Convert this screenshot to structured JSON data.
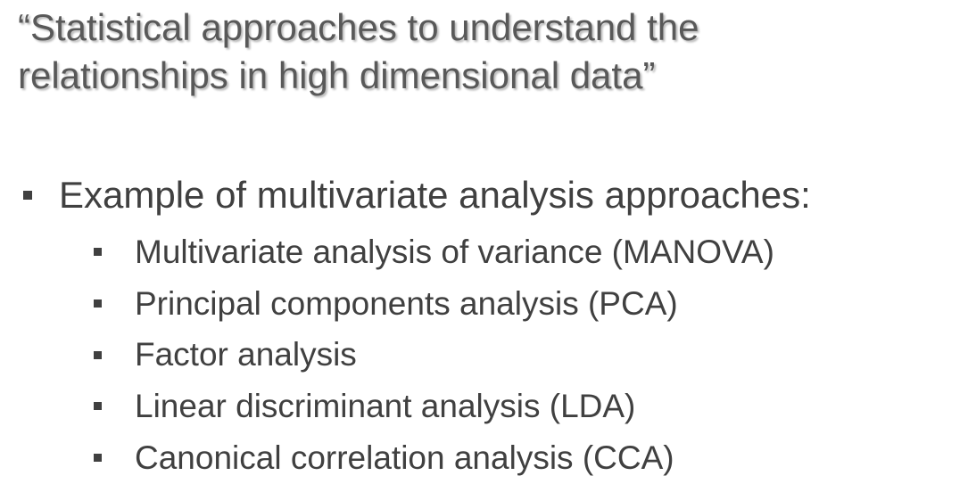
{
  "slide": {
    "title_lines": [
      "“Statistical approaches to understand the",
      "relationships in high dimensional data”"
    ],
    "bullet": "Example of multivariate analysis approaches:",
    "sub_bullets": [
      "Multivariate analysis of variance (MANOVA)",
      "Principal components analysis (PCA)",
      "Factor analysis",
      "Linear discriminant analysis (LDA)",
      "Canonical correlation analysis (CCA)"
    ]
  },
  "colors": {
    "title_text": "#595959",
    "body_text": "#404040",
    "background": "#ffffff"
  }
}
